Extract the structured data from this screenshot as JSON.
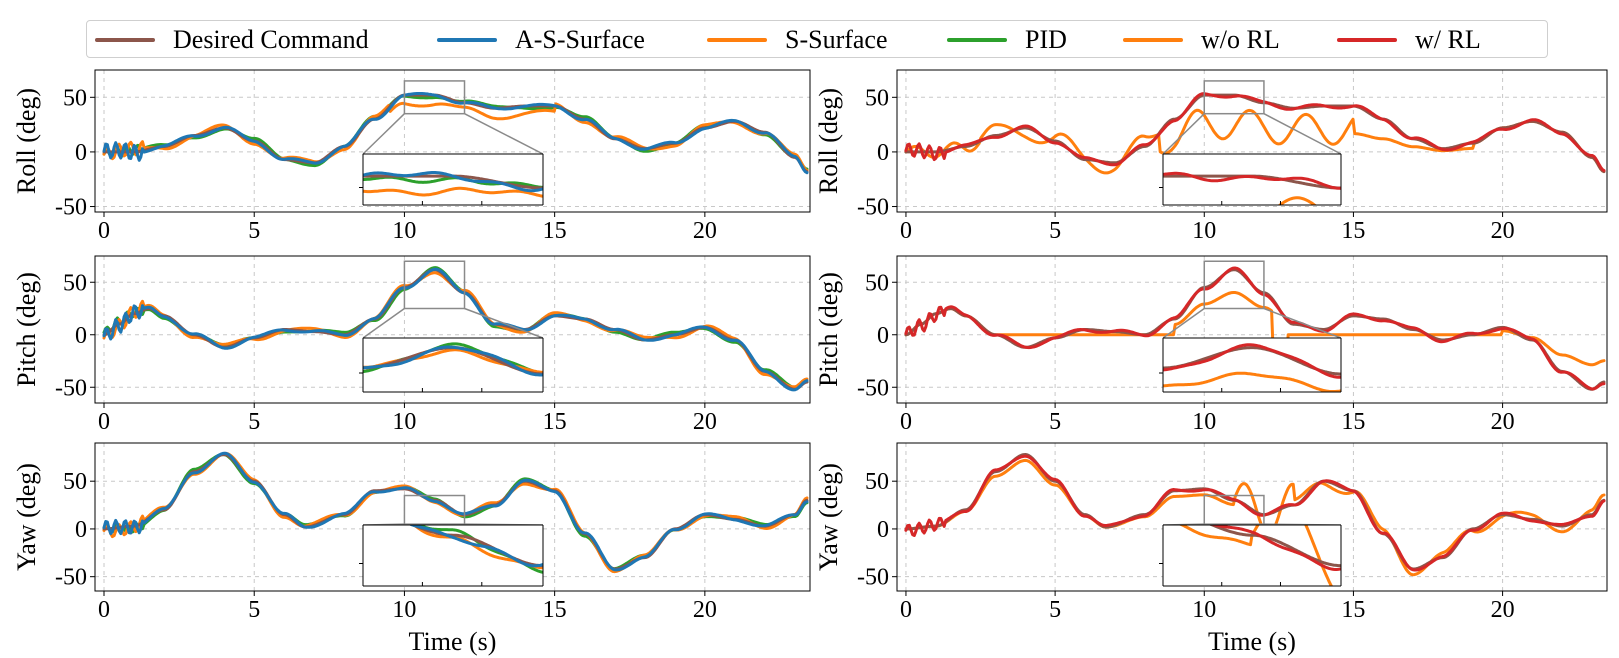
{
  "chart_data": {
    "type": "line",
    "legend": [
      {
        "name": "Desired Command",
        "color": "#8c564b"
      },
      {
        "name": "A-S-Surface",
        "color": "#1f77b4"
      },
      {
        "name": "S-Surface",
        "color": "#ff7f0e"
      },
      {
        "name": "PID",
        "color": "#2ca02c"
      },
      {
        "name": "w/o RL",
        "color": "#ff7f0e"
      },
      {
        "name": "w/ RL",
        "color": "#d62728"
      }
    ],
    "xlabel": "Time (s)",
    "xlim": [
      -0.3,
      23.5
    ],
    "xticks": [
      "0",
      "5",
      "10",
      "15",
      "20"
    ],
    "rows": [
      {
        "ylabel": "Roll (deg)",
        "ylim": [
          -55,
          75
        ],
        "yticks": [
          "50",
          "0",
          "-50"
        ],
        "ytick_values": [
          50,
          0,
          -50
        ],
        "desired": [
          [
            0,
            0
          ],
          [
            1,
            0
          ],
          [
            2,
            5
          ],
          [
            3,
            15
          ],
          [
            4,
            22
          ],
          [
            5,
            10
          ],
          [
            6,
            -7
          ],
          [
            7,
            -10
          ],
          [
            8,
            5
          ],
          [
            9,
            30
          ],
          [
            10,
            52
          ],
          [
            11,
            52
          ],
          [
            12,
            45
          ],
          [
            13,
            40
          ],
          [
            14,
            42
          ],
          [
            15,
            42
          ],
          [
            16,
            30
          ],
          [
            17,
            12
          ],
          [
            18,
            3
          ],
          [
            19,
            8
          ],
          [
            20,
            22
          ],
          [
            21,
            28
          ],
          [
            22,
            18
          ],
          [
            23,
            -5
          ],
          [
            23.4,
            -18
          ]
        ],
        "zoom_box": [
          10,
          12,
          35,
          65
        ]
      },
      {
        "ylabel": "Pitch (deg)",
        "ylim": [
          -65,
          75
        ],
        "yticks": [
          "50",
          "0",
          "-50"
        ],
        "ytick_values": [
          50,
          0,
          -50
        ],
        "desired": [
          [
            0,
            0
          ],
          [
            0.5,
            10
          ],
          [
            1,
            20
          ],
          [
            1.5,
            25
          ],
          [
            2,
            18
          ],
          [
            3,
            0
          ],
          [
            4,
            -12
          ],
          [
            5,
            -3
          ],
          [
            6,
            5
          ],
          [
            7,
            3
          ],
          [
            8,
            0
          ],
          [
            9,
            15
          ],
          [
            10,
            45
          ],
          [
            11,
            62
          ],
          [
            12,
            40
          ],
          [
            13,
            10
          ],
          [
            14,
            5
          ],
          [
            15,
            18
          ],
          [
            16,
            15
          ],
          [
            17,
            5
          ],
          [
            18,
            -5
          ],
          [
            19,
            0
          ],
          [
            20,
            7
          ],
          [
            21,
            -5
          ],
          [
            22,
            -35
          ],
          [
            23,
            -52
          ],
          [
            23.4,
            -45
          ]
        ],
        "zoom_box": [
          10,
          12,
          25,
          70
        ]
      },
      {
        "ylabel": "Yaw (deg)",
        "ylim": [
          -65,
          90
        ],
        "yticks": [
          "50",
          "0",
          "-50"
        ],
        "ytick_values": [
          50,
          0,
          -50
        ],
        "desired": [
          [
            0,
            0
          ],
          [
            1,
            3
          ],
          [
            2,
            20
          ],
          [
            3,
            60
          ],
          [
            4,
            78
          ],
          [
            5,
            50
          ],
          [
            6,
            15
          ],
          [
            6.7,
            2
          ],
          [
            8,
            15
          ],
          [
            9,
            40
          ],
          [
            10,
            42
          ],
          [
            11,
            30
          ],
          [
            12,
            15
          ],
          [
            13,
            25
          ],
          [
            14,
            50
          ],
          [
            15,
            40
          ],
          [
            16,
            -5
          ],
          [
            17,
            -42
          ],
          [
            18,
            -30
          ],
          [
            19,
            0
          ],
          [
            20,
            15
          ],
          [
            21,
            10
          ],
          [
            22,
            3
          ],
          [
            23,
            15
          ],
          [
            23.4,
            30
          ]
        ],
        "zoom_box": [
          10,
          12,
          5,
          35
        ]
      }
    ],
    "panels": [
      "left",
      "right"
    ]
  }
}
